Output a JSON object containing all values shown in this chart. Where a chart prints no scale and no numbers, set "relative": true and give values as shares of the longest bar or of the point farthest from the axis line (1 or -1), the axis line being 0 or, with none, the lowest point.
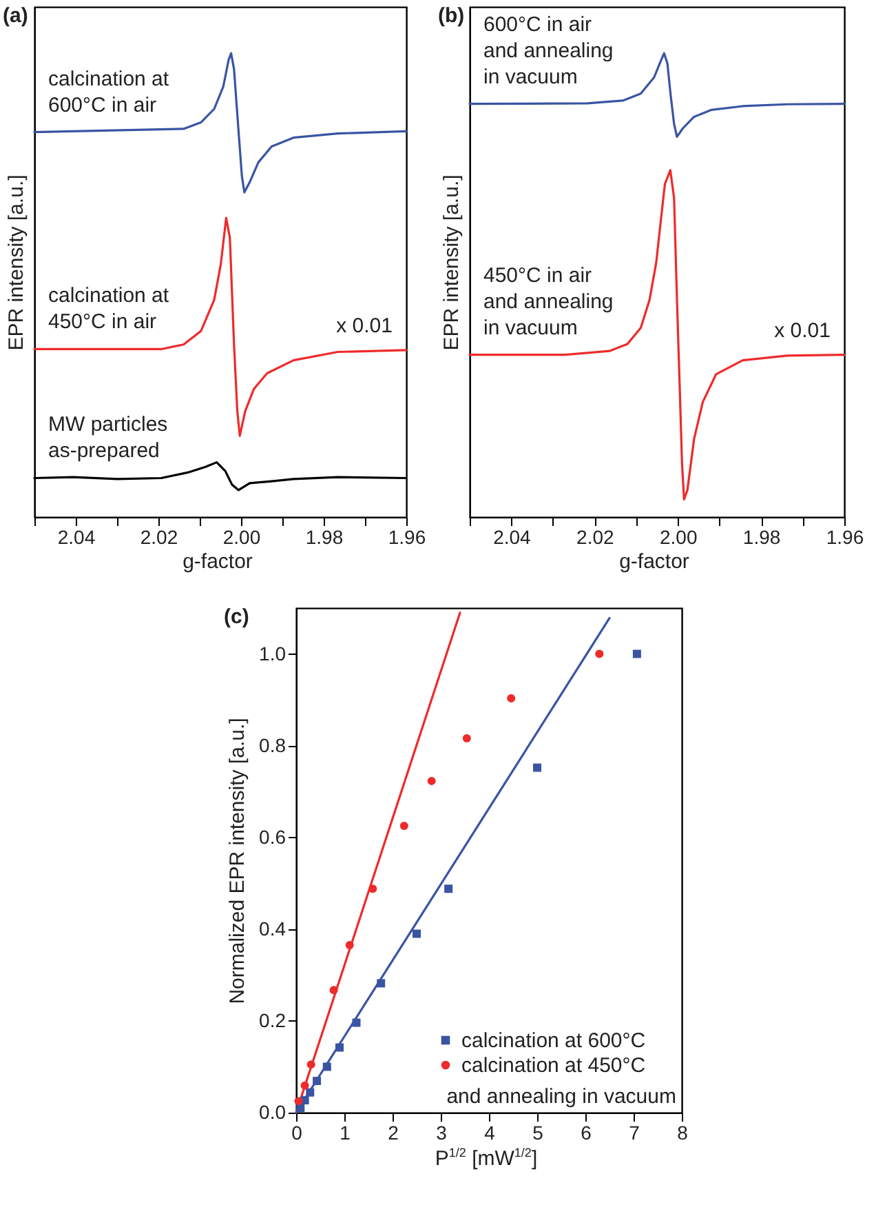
{
  "chart_data": [
    {
      "type": "line",
      "title": "(a)",
      "xlabel": "g-factor",
      "ylabel": "EPR intensity [a.u.]",
      "relative": true,
      "xlim": [
        2.05,
        1.96
      ],
      "xticks": [
        {
          "value": 2.05,
          "label": null
        },
        2.04,
        {
          "value": 2.03,
          "label": null
        },
        2.02,
        {
          "value": 2.01,
          "label": null
        },
        {
          "value": 2.0,
          "label": "2.00"
        },
        {
          "value": 1.99,
          "label": null
        },
        1.98,
        {
          "value": 1.97,
          "label": null
        },
        1.96
      ],
      "series": [
        {
          "name": "calcination at 600°C in air",
          "color": "#3a54a4",
          "x": [
            2.05,
            2.0139,
            2.0097,
            2.0065,
            2.0043,
            2.003,
            2.0024,
            2.0017,
            2.0006,
            1.9998,
            1.9992,
            1.9979,
            1.9958,
            1.9926,
            1.9873,
            1.9766,
            1.96
          ],
          "values": [
            0.83,
            0.837,
            0.851,
            0.88,
            0.928,
            0.986,
            1.0,
            0.966,
            0.832,
            0.736,
            0.7,
            0.722,
            0.765,
            0.799,
            0.818,
            0.827,
            0.832
          ]
        },
        {
          "name": "calcination at 450°C in air",
          "color": "#ee2a2a",
          "x": [
            2.05,
            2.0193,
            2.0139,
            2.0097,
            2.0065,
            2.0049,
            2.0036,
            2.0027,
            2.0017,
            2.0009,
            2.0003,
            1.999,
            1.9969,
            1.9937,
            1.9873,
            1.9766,
            1.96
          ],
          "values": [
            0.362,
            0.362,
            0.372,
            0.401,
            0.468,
            0.545,
            0.645,
            0.602,
            0.372,
            0.228,
            0.175,
            0.228,
            0.276,
            0.31,
            0.338,
            0.356,
            0.36
          ]
        },
        {
          "name": "MW particles as-prepared",
          "color": "#000000",
          "x": [
            2.05,
            2.0406,
            2.0299,
            2.0193,
            2.0129,
            2.0086,
            2.0059,
            2.0038,
            2.0022,
            2.0006,
            1.9979,
            1.9926,
            1.9873,
            1.9766,
            1.96
          ],
          "values": [
            0.084,
            0.086,
            0.082,
            0.084,
            0.096,
            0.108,
            0.118,
            0.099,
            0.07,
            0.058,
            0.073,
            0.077,
            0.082,
            0.086,
            0.084
          ]
        }
      ],
      "annotations": [
        "x 0.01"
      ]
    },
    {
      "type": "line",
      "title": "(b)",
      "xlabel": "g-factor",
      "ylabel": "EPR intensity [a.u.]",
      "relative": true,
      "xlim": [
        2.05,
        1.96
      ],
      "xticks": [
        {
          "value": 2.05,
          "label": null
        },
        2.04,
        {
          "value": 2.03,
          "label": null
        },
        2.02,
        {
          "value": 2.01,
          "label": null
        },
        {
          "value": 2.0,
          "label": "2.00"
        },
        {
          "value": 1.99,
          "label": null
        },
        1.98,
        {
          "value": 1.97,
          "label": null
        },
        1.96
      ],
      "series": [
        {
          "name": "600°C in air and annealing in vacuum",
          "color": "#3a54a4",
          "x": [
            2.05,
            2.0217,
            2.0132,
            2.0089,
            2.0057,
            2.0041,
            2.0033,
            2.0025,
            2.0017,
            2.0009,
            2.0002,
            1.9988,
            1.9961,
            1.9919,
            1.9844,
            1.9737,
            1.96
          ],
          "values": [
            0.891,
            0.892,
            0.898,
            0.913,
            0.948,
            0.983,
            1.0,
            0.978,
            0.908,
            0.848,
            0.82,
            0.838,
            0.863,
            0.878,
            0.886,
            0.89,
            0.891
          ]
        },
        {
          "name": "450°C in air and annealing in vacuum",
          "color": "#ee2a2a",
          "x": [
            2.05,
            2.0271,
            2.0164,
            2.0121,
            2.0089,
            2.0068,
            2.0052,
            2.0041,
            2.0031,
            2.0018,
            2.0009,
            2.0002,
            1.9995,
            1.999,
            1.9985,
            1.9977,
            1.9961,
            1.994,
            1.9908,
            1.9844,
            1.9737,
            1.96
          ],
          "values": [
            0.35,
            0.35,
            0.358,
            0.373,
            0.408,
            0.468,
            0.548,
            0.638,
            0.718,
            0.748,
            0.688,
            0.468,
            0.268,
            0.118,
            0.038,
            0.058,
            0.168,
            0.248,
            0.308,
            0.338,
            0.348,
            0.35
          ]
        }
      ],
      "annotations": [
        "x 0.01"
      ]
    },
    {
      "type": "scatter",
      "title": "(c)",
      "xlabel": "P$^{1/2}$ [mW$^{1/2}$]",
      "ylabel": "Normalized EPR intensity [a.u.]",
      "xlim": [
        0,
        8
      ],
      "xticks": [
        0,
        1,
        2,
        3,
        4,
        5,
        6,
        7,
        8
      ],
      "ylim": [
        0,
        1.1
      ],
      "yticks": [
        {
          "value": 0,
          "label": "0.0"
        },
        0.2,
        0.4,
        0.6,
        0.8,
        {
          "value": 1,
          "label": "1.0"
        }
      ],
      "legend": "bottom right",
      "series": [
        {
          "type": "line",
          "color": "#ee2a2a",
          "x": [
            0,
            3.4
          ],
          "values": [
            0,
            1.09
          ]
        },
        {
          "type": "line",
          "color": "#3a54a4",
          "x": [
            0,
            6.5
          ],
          "values": [
            0,
            1.078
          ]
        },
        {
          "name": "calcination at 600°C",
          "color": "#3a54a4",
          "marker": "square",
          "x": [
            0.09,
            0.18,
            0.29,
            0.43,
            0.64,
            0.9,
            1.25,
            1.76,
            2.5,
            3.16,
            5.0,
            7.07
          ],
          "values": [
            0.01,
            0.027,
            0.044,
            0.069,
            0.1,
            0.142,
            0.196,
            0.282,
            0.39,
            0.488,
            0.752,
            1.0
          ]
        },
        {
          "name": "calcination at 450°C",
          "color": "#ee2a2a",
          "marker": "circle",
          "x": [
            0.05,
            0.18,
            0.31,
            0.78,
            1.11,
            1.59,
            2.24,
            2.81,
            3.54,
            4.46,
            6.29
          ],
          "values": [
            0.025,
            0.059,
            0.105,
            0.267,
            0.365,
            0.488,
            0.625,
            0.723,
            0.816,
            0.903,
            1.0
          ]
        }
      ],
      "annotations": [
        "and annealing in vacuum"
      ]
    }
  ]
}
